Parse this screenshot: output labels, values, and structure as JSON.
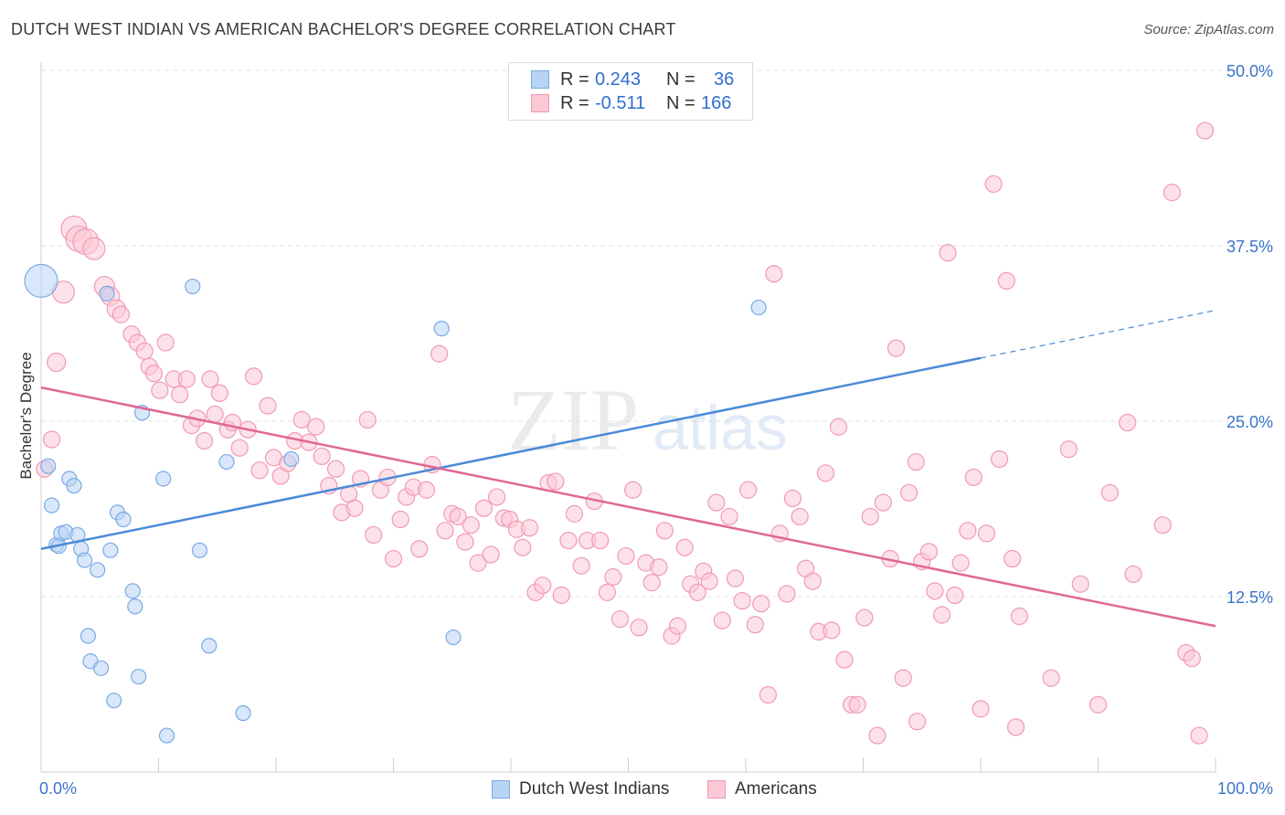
{
  "title": "DUTCH WEST INDIAN VS AMERICAN BACHELOR'S DEGREE CORRELATION CHART",
  "source": "Source: ZipAtlas.com",
  "watermark": {
    "zip": "ZIP",
    "atlas": "atlas"
  },
  "legend": {
    "rows": [
      {
        "r_label": "R =",
        "r_value": "0.243",
        "n_label": "N =",
        "n_value": "36",
        "fill": "#b8d4f4",
        "stroke": "#7aaae4"
      },
      {
        "r_label": "R =",
        "r_value": "-0.511",
        "n_label": "N =",
        "n_value": "166",
        "fill": "#fbc8d6",
        "stroke": "#f09ab4"
      }
    ]
  },
  "bottom_legend": [
    {
      "label": "Dutch West Indians",
      "fill": "#b8d4f4",
      "stroke": "#7aaae4"
    },
    {
      "label": "Americans",
      "fill": "#fbc8d6",
      "stroke": "#f09ab4"
    }
  ],
  "chart_data": {
    "type": "scatter",
    "title": "DUTCH WEST INDIAN VS AMERICAN BACHELOR'S DEGREE CORRELATION CHART",
    "xlabel": "",
    "ylabel": "Bachelor's Degree",
    "xlim": [
      0,
      100
    ],
    "ylim": [
      0,
      50
    ],
    "x_tick_labels": [
      "0.0%",
      "100.0%"
    ],
    "y_ticks": [
      12.5,
      25.0,
      37.5,
      50.0
    ],
    "y_tick_labels": [
      "12.5%",
      "25.0%",
      "37.5%",
      "50.0%"
    ],
    "grid": "horizontal dashed",
    "legend_position": "top-center",
    "series": [
      {
        "name": "Dutch West Indians",
        "color": "#4a8ad8",
        "fill": "#b8d4f4",
        "trend": {
          "x0": 0,
          "y0": 15.9,
          "x1": 80,
          "y1": 29.5,
          "dash_to_x": 100,
          "dash_to_y": 32.9
        },
        "points": [
          [
            0,
            35.0,
            18
          ],
          [
            0.6,
            21.8,
            8
          ],
          [
            0.9,
            19.0,
            8
          ],
          [
            1.3,
            16.2,
            8
          ],
          [
            1.5,
            16.1,
            8
          ],
          [
            1.7,
            17.0,
            8
          ],
          [
            2.1,
            17.1,
            8
          ],
          [
            2.4,
            20.9,
            8
          ],
          [
            2.8,
            20.4,
            8
          ],
          [
            3.1,
            16.9,
            8
          ],
          [
            3.4,
            15.9,
            8
          ],
          [
            3.7,
            15.1,
            8
          ],
          [
            4.0,
            9.7,
            8
          ],
          [
            4.2,
            7.9,
            8
          ],
          [
            4.8,
            14.4,
            8
          ],
          [
            5.1,
            7.4,
            8
          ],
          [
            5.6,
            34.1,
            8
          ],
          [
            5.9,
            15.8,
            8
          ],
          [
            6.2,
            5.1,
            8
          ],
          [
            6.5,
            18.5,
            8
          ],
          [
            7.0,
            18.0,
            8
          ],
          [
            7.8,
            12.9,
            8
          ],
          [
            8.0,
            11.8,
            8
          ],
          [
            8.3,
            6.8,
            8
          ],
          [
            8.6,
            25.6,
            8
          ],
          [
            10.4,
            20.9,
            8
          ],
          [
            10.7,
            2.6,
            8
          ],
          [
            12.9,
            34.6,
            8
          ],
          [
            13.5,
            15.8,
            8
          ],
          [
            14.3,
            9.0,
            8
          ],
          [
            15.8,
            22.1,
            8
          ],
          [
            17.2,
            4.2,
            8
          ],
          [
            21.3,
            22.3,
            8
          ],
          [
            34.1,
            31.6,
            8
          ],
          [
            35.1,
            9.6,
            8
          ],
          [
            61.1,
            33.1,
            8
          ]
        ]
      },
      {
        "name": "Americans",
        "color": "#e06892",
        "fill": "#fbc8d6",
        "trend": {
          "x0": 0,
          "y0": 27.4,
          "x1": 100,
          "y1": 10.4
        },
        "points": [
          [
            0.3,
            21.6,
            9
          ],
          [
            0.9,
            23.7,
            9
          ],
          [
            1.3,
            29.2,
            10
          ],
          [
            1.9,
            34.2,
            12
          ],
          [
            2.8,
            38.7,
            14
          ],
          [
            3.2,
            38.0,
            14
          ],
          [
            3.8,
            37.8,
            14
          ],
          [
            4.5,
            37.3,
            12
          ],
          [
            5.4,
            34.6,
            11
          ],
          [
            5.9,
            33.9,
            10
          ],
          [
            6.4,
            33.0,
            10
          ],
          [
            6.8,
            32.6,
            9
          ],
          [
            7.7,
            31.2,
            9
          ],
          [
            8.2,
            30.6,
            9
          ],
          [
            8.8,
            30.0,
            9
          ],
          [
            9.2,
            28.9,
            9
          ],
          [
            9.6,
            28.4,
            9
          ],
          [
            10.1,
            27.2,
            9
          ],
          [
            10.6,
            30.6,
            9
          ],
          [
            11.3,
            28.0,
            9
          ],
          [
            11.8,
            26.9,
            9
          ],
          [
            12.4,
            28.0,
            9
          ],
          [
            12.8,
            24.7,
            9
          ],
          [
            13.3,
            25.2,
            9
          ],
          [
            13.9,
            23.6,
            9
          ],
          [
            14.4,
            28.0,
            9
          ],
          [
            14.8,
            25.5,
            9
          ],
          [
            15.2,
            27.0,
            9
          ],
          [
            15.9,
            24.4,
            9
          ],
          [
            16.3,
            24.9,
            9
          ],
          [
            16.9,
            23.1,
            9
          ],
          [
            17.6,
            24.4,
            9
          ],
          [
            18.1,
            28.2,
            9
          ],
          [
            18.6,
            21.5,
            9
          ],
          [
            19.3,
            26.1,
            9
          ],
          [
            19.8,
            22.4,
            9
          ],
          [
            20.4,
            21.1,
            9
          ],
          [
            21.0,
            22.0,
            9
          ],
          [
            21.6,
            23.6,
            9
          ],
          [
            22.2,
            25.1,
            9
          ],
          [
            22.8,
            23.5,
            9
          ],
          [
            23.4,
            24.6,
            9
          ],
          [
            23.9,
            22.5,
            9
          ],
          [
            24.5,
            20.4,
            9
          ],
          [
            25.1,
            21.6,
            9
          ],
          [
            25.6,
            18.5,
            9
          ],
          [
            26.2,
            19.8,
            9
          ],
          [
            26.7,
            18.8,
            9
          ],
          [
            27.2,
            20.9,
            9
          ],
          [
            27.8,
            25.1,
            9
          ],
          [
            28.3,
            16.9,
            9
          ],
          [
            28.9,
            20.1,
            9
          ],
          [
            29.5,
            21.0,
            9
          ],
          [
            30.0,
            15.2,
            9
          ],
          [
            30.6,
            18.0,
            9
          ],
          [
            31.1,
            19.6,
            9
          ],
          [
            31.7,
            20.3,
            9
          ],
          [
            32.2,
            15.9,
            9
          ],
          [
            32.8,
            20.1,
            9
          ],
          [
            33.3,
            21.9,
            9
          ],
          [
            33.9,
            29.8,
            9
          ],
          [
            34.4,
            17.2,
            9
          ],
          [
            35.0,
            18.4,
            9
          ],
          [
            35.5,
            18.2,
            9
          ],
          [
            36.1,
            16.4,
            9
          ],
          [
            36.6,
            17.6,
            9
          ],
          [
            37.2,
            14.9,
            9
          ],
          [
            37.7,
            18.8,
            9
          ],
          [
            38.3,
            15.5,
            9
          ],
          [
            38.8,
            19.6,
            9
          ],
          [
            39.4,
            18.1,
            9
          ],
          [
            39.9,
            18.0,
            9
          ],
          [
            40.5,
            17.3,
            9
          ],
          [
            41.0,
            16.0,
            9
          ],
          [
            41.6,
            17.4,
            9
          ],
          [
            42.1,
            12.8,
            9
          ],
          [
            42.7,
            13.3,
            9
          ],
          [
            43.2,
            20.6,
            9
          ],
          [
            43.8,
            20.7,
            9
          ],
          [
            44.3,
            12.6,
            9
          ],
          [
            44.9,
            16.5,
            9
          ],
          [
            45.4,
            18.4,
            9
          ],
          [
            46.0,
            14.7,
            9
          ],
          [
            46.5,
            16.5,
            9
          ],
          [
            47.1,
            19.3,
            9
          ],
          [
            47.6,
            16.5,
            9
          ],
          [
            48.2,
            12.8,
            9
          ],
          [
            48.7,
            13.9,
            9
          ],
          [
            49.3,
            10.9,
            9
          ],
          [
            49.8,
            15.4,
            9
          ],
          [
            50.4,
            20.1,
            9
          ],
          [
            50.9,
            10.3,
            9
          ],
          [
            51.5,
            14.9,
            9
          ],
          [
            52.0,
            13.5,
            9
          ],
          [
            52.6,
            14.6,
            9
          ],
          [
            53.1,
            17.2,
            9
          ],
          [
            53.7,
            9.7,
            9
          ],
          [
            54.2,
            10.4,
            9
          ],
          [
            54.8,
            16.0,
            9
          ],
          [
            55.3,
            13.4,
            9
          ],
          [
            55.9,
            12.8,
            9
          ],
          [
            56.4,
            14.3,
            9
          ],
          [
            56.9,
            13.6,
            9
          ],
          [
            57.5,
            19.2,
            9
          ],
          [
            58.0,
            10.8,
            9
          ],
          [
            58.6,
            18.2,
            9
          ],
          [
            59.1,
            13.8,
            9
          ],
          [
            59.7,
            12.2,
            9
          ],
          [
            60.2,
            20.1,
            9
          ],
          [
            60.8,
            10.5,
            9
          ],
          [
            61.3,
            12.0,
            9
          ],
          [
            61.9,
            5.5,
            9
          ],
          [
            62.4,
            35.5,
            9
          ],
          [
            62.9,
            17.0,
            9
          ],
          [
            63.5,
            12.7,
            9
          ],
          [
            64.0,
            19.5,
            9
          ],
          [
            64.6,
            18.2,
            9
          ],
          [
            65.1,
            14.5,
            9
          ],
          [
            65.7,
            13.6,
            9
          ],
          [
            66.2,
            10.0,
            9
          ],
          [
            66.8,
            21.3,
            9
          ],
          [
            67.3,
            10.1,
            9
          ],
          [
            67.9,
            24.6,
            9
          ],
          [
            68.4,
            8.0,
            9
          ],
          [
            69.0,
            4.8,
            9
          ],
          [
            69.5,
            4.8,
            9
          ],
          [
            70.1,
            11.0,
            9
          ],
          [
            70.6,
            18.2,
            9
          ],
          [
            71.2,
            2.6,
            9
          ],
          [
            71.7,
            19.2,
            9
          ],
          [
            72.3,
            15.2,
            9
          ],
          [
            72.8,
            30.2,
            9
          ],
          [
            73.4,
            6.7,
            9
          ],
          [
            73.9,
            19.9,
            9
          ],
          [
            74.5,
            22.1,
            9
          ],
          [
            75.0,
            15.0,
            9
          ],
          [
            75.6,
            15.7,
            9
          ],
          [
            76.1,
            12.9,
            9
          ],
          [
            76.7,
            11.2,
            9
          ],
          [
            77.2,
            37.0,
            9
          ],
          [
            77.8,
            12.6,
            9
          ],
          [
            78.3,
            14.9,
            9
          ],
          [
            78.9,
            17.2,
            9
          ],
          [
            79.4,
            21.0,
            9
          ],
          [
            80.0,
            4.5,
            9
          ],
          [
            80.5,
            17.0,
            9
          ],
          [
            81.1,
            41.9,
            9
          ],
          [
            81.6,
            22.3,
            9
          ],
          [
            82.2,
            35.0,
            9
          ],
          [
            82.7,
            15.2,
            9
          ],
          [
            83.3,
            11.1,
            9
          ],
          [
            86.0,
            6.7,
            9
          ],
          [
            87.5,
            23.0,
            9
          ],
          [
            88.5,
            13.4,
            9
          ],
          [
            90.0,
            4.8,
            9
          ],
          [
            91.0,
            19.9,
            9
          ],
          [
            92.5,
            24.9,
            9
          ],
          [
            93.0,
            14.1,
            9
          ],
          [
            95.5,
            17.6,
            9
          ],
          [
            96.3,
            41.3,
            9
          ],
          [
            97.5,
            8.5,
            9
          ],
          [
            98.0,
            8.1,
            9
          ],
          [
            98.6,
            2.6,
            9
          ],
          [
            99.1,
            45.7,
            9
          ],
          [
            74.6,
            3.6,
            9
          ],
          [
            83.0,
            3.2,
            9
          ]
        ]
      }
    ]
  }
}
